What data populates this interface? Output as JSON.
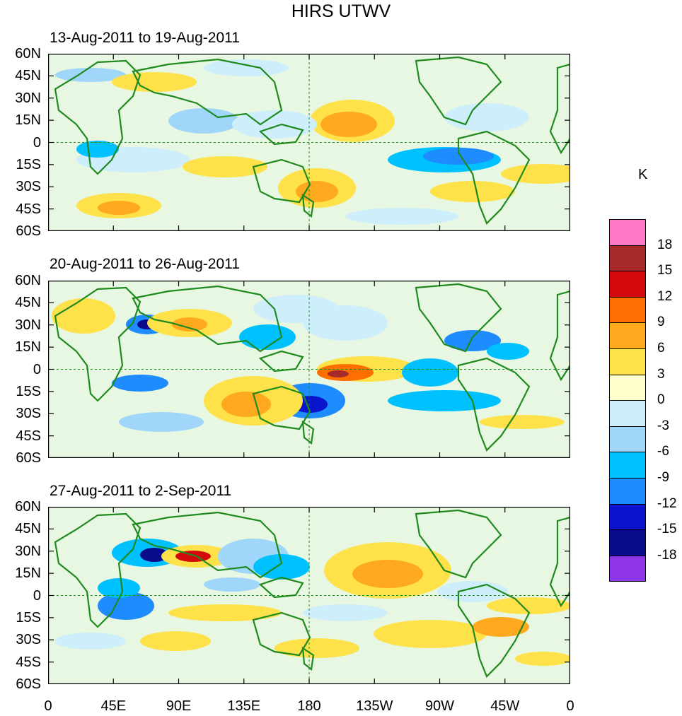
{
  "title": "HIRS UTWV",
  "colorbar": {
    "unit": "K",
    "colors": [
      "#8f35e8",
      "#0a0a8c",
      "#0a14cc",
      "#1e8cff",
      "#00c1ff",
      "#9fd6f9",
      "#cdeefa",
      "#ffffcc",
      "#ffe14a",
      "#ffaa1e",
      "#ff6e00",
      "#d40a0a",
      "#a52a2a",
      "#ff78c8"
    ],
    "labels": [
      "-18",
      "-15",
      "-12",
      "-9",
      "-6",
      "-3",
      "0",
      "3",
      "6",
      "9",
      "12",
      "15",
      "18"
    ]
  },
  "panels": [
    {
      "label": "13-Aug-2011 to 19-Aug-2011"
    },
    {
      "label": "20-Aug-2011 to 26-Aug-2011"
    },
    {
      "label": "27-Aug-2011 to 2-Sep-2011"
    }
  ],
  "y_ticks": [
    "60N",
    "45N",
    "30N",
    "15N",
    "0",
    "15S",
    "30S",
    "45S",
    "60S"
  ],
  "x_ticks": [
    "0",
    "45E",
    "90E",
    "135E",
    "180",
    "135W",
    "90W",
    "45W",
    "0"
  ],
  "map_colors": {
    "ocean_bg": "#ffffcc",
    "coast": "#1f8a1f",
    "grid_line": "#1f8a1f"
  }
}
